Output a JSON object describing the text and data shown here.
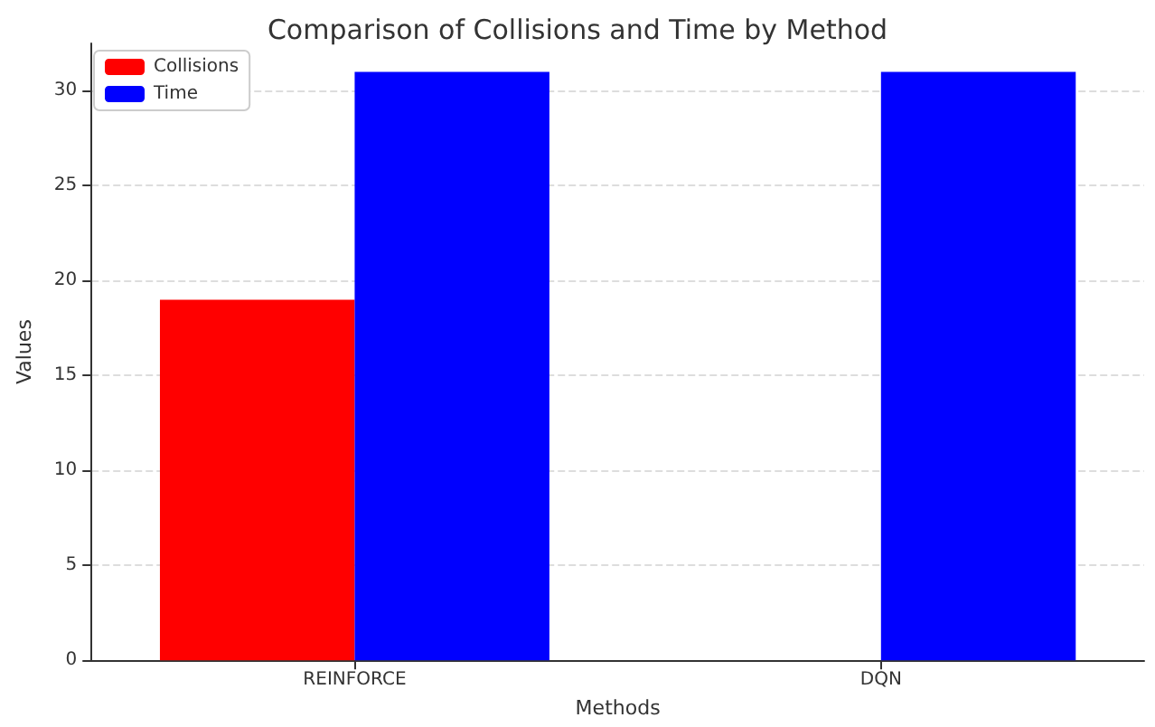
{
  "chart_data": {
    "type": "bar",
    "title": "Comparison of Collisions and Time by Method",
    "xlabel": "Methods",
    "ylabel": "Values",
    "categories": [
      "REINFORCE",
      "DQN"
    ],
    "series": [
      {
        "name": "Collisions",
        "color": "#ff0000",
        "values": [
          19,
          0
        ]
      },
      {
        "name": "Time",
        "color": "#0000ff",
        "values": [
          31,
          31
        ]
      }
    ],
    "ylim": [
      0,
      32.5
    ],
    "yticks": [
      0,
      5,
      10,
      15,
      20,
      25,
      30
    ],
    "grid": "y",
    "legend": "top left"
  }
}
